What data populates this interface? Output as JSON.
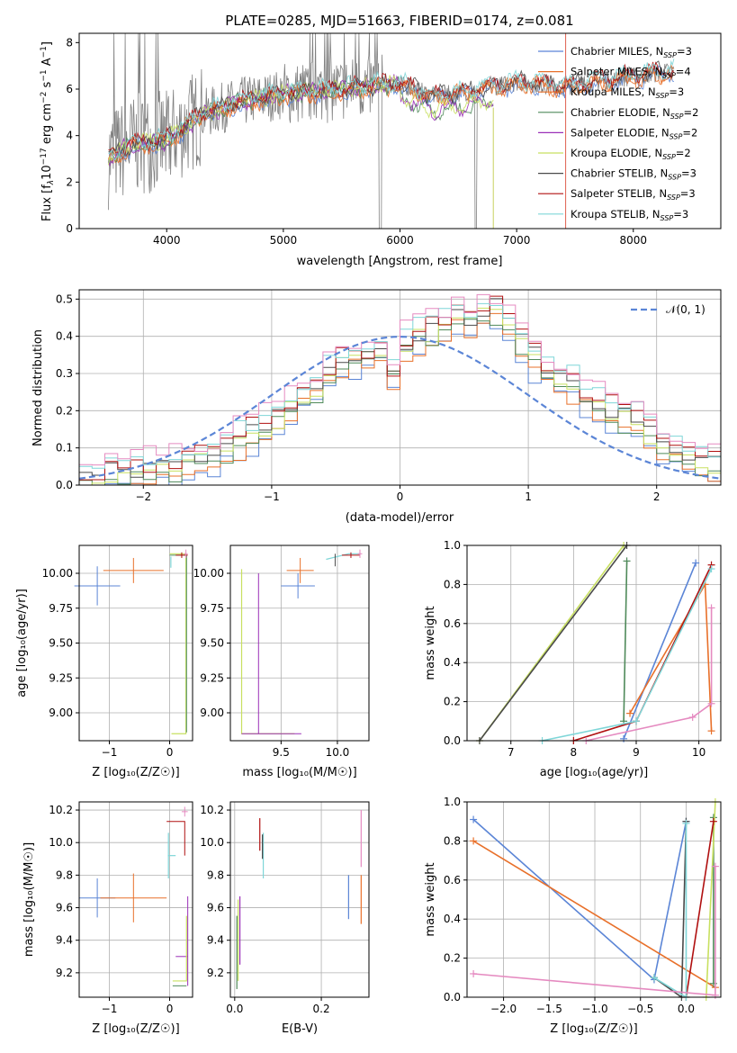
{
  "title": "PLATE=0285, MJD=51663, FIBERID=0174, z=0.081",
  "colors": {
    "Chabrier MILES": "#5b85d6",
    "Salpeter MILES": "#e8702a",
    "Kroupa MILES": "#e8702a",
    "Chabrier ELODIE": "#4f8a5a",
    "Salpeter ELODIE": "#9b30b8",
    "Kroupa ELODIE": "#c8e060",
    "Chabrier STELIB": "#4a4a4a",
    "Salpeter STELIB": "#b01010",
    "Kroupa STELIB": "#7fd6d8",
    "data": "#808080",
    "pink": "#e58ac0",
    "normal": "#5b85d6"
  },
  "chart_data": [
    {
      "id": "spectrum",
      "type": "line",
      "title": "PLATE=0285, MJD=51663, FIBERID=0174, z=0.081",
      "xlabel": "wavelength [Angstrom, rest frame]",
      "ylabel_parts": [
        "Flux [f",
        "λ",
        "10",
        "−17",
        " erg cm",
        "−2",
        " s",
        "−1",
        " A",
        "−1",
        "]"
      ],
      "xlim": [
        3250,
        8750
      ],
      "ylim": [
        0,
        8.4
      ],
      "xticks": [
        "4000",
        "5000",
        "6000",
        "7000",
        "8000"
      ],
      "yticks": [
        "0",
        "2",
        "4",
        "6",
        "8"
      ],
      "legend": [
        {
          "name": "Chabrier MILES",
          "nssp": "3"
        },
        {
          "name": "Salpeter MILES",
          "nssp": "4"
        },
        {
          "name": "Kroupa MILES",
          "nssp": "3"
        },
        {
          "name": "Chabrier ELODIE",
          "nssp": "2"
        },
        {
          "name": "Salpeter ELODIE",
          "nssp": "2"
        },
        {
          "name": "Kroupa ELODIE",
          "nssp": "2"
        },
        {
          "name": "Chabrier STELIB",
          "nssp": "3"
        },
        {
          "name": "Salpeter STELIB",
          "nssp": "3"
        },
        {
          "name": "Kroupa STELIB",
          "nssp": "3"
        }
      ],
      "model_trend": {
        "x": [
          3500,
          3700,
          4000,
          4300,
          4600,
          5000,
          5300,
          5700,
          6000,
          6300,
          6600,
          7000,
          7400,
          7800,
          8100,
          8350
        ],
        "y": [
          3.0,
          3.6,
          3.8,
          4.9,
          5.4,
          5.8,
          5.9,
          6.1,
          6.2,
          5.7,
          5.9,
          6.3,
          6.1,
          6.4,
          6.6,
          6.8
        ]
      },
      "elodie_cutoff_x": 6800
    },
    {
      "id": "residuals",
      "type": "histogram",
      "xlabel": "(data-model)/error",
      "ylabel": "Normed distribution",
      "xlim": [
        -2.5,
        2.5
      ],
      "ylim": [
        0,
        0.525
      ],
      "xticks": [
        "−2",
        "−1",
        "0",
        "1",
        "2"
      ],
      "yticks": [
        "0.0",
        "0.1",
        "0.2",
        "0.3",
        "0.4",
        "0.5"
      ],
      "legend": "𝒩(0, 1)",
      "bin_centers": [
        -2.45,
        -2.35,
        -2.25,
        -2.15,
        -2.05,
        -1.95,
        -1.85,
        -1.75,
        -1.65,
        -1.55,
        -1.45,
        -1.35,
        -1.25,
        -1.15,
        -1.05,
        -0.95,
        -0.85,
        -0.75,
        -0.65,
        -0.55,
        -0.45,
        -0.35,
        -0.25,
        -0.15,
        -0.05,
        0.05,
        0.15,
        0.25,
        0.35,
        0.45,
        0.55,
        0.65,
        0.75,
        0.85,
        0.95,
        1.05,
        1.15,
        1.25,
        1.35,
        1.45,
        1.55,
        1.65,
        1.75,
        1.85,
        1.95,
        2.05,
        2.15,
        2.25,
        2.35,
        2.45
      ],
      "density": [
        0.02,
        0.02,
        0.03,
        0.03,
        0.04,
        0.04,
        0.05,
        0.05,
        0.06,
        0.07,
        0.08,
        0.1,
        0.12,
        0.14,
        0.16,
        0.18,
        0.21,
        0.24,
        0.26,
        0.3,
        0.33,
        0.35,
        0.34,
        0.36,
        0.3,
        0.38,
        0.4,
        0.41,
        0.43,
        0.45,
        0.44,
        0.46,
        0.47,
        0.42,
        0.38,
        0.34,
        0.31,
        0.28,
        0.27,
        0.24,
        0.22,
        0.2,
        0.18,
        0.17,
        0.14,
        0.12,
        0.1,
        0.08,
        0.06,
        0.05
      ]
    },
    {
      "id": "age_vs_z",
      "type": "scatter",
      "xlabel": "Z [log₁₀(Z/Z☉)]",
      "ylabel": "age  [log₁₀(age/yr)]",
      "xlim": [
        -1.5,
        0.38
      ],
      "ylim": [
        8.8,
        10.2
      ],
      "xticks": [
        {
          "v": -1,
          "t": "−1"
        },
        {
          "v": 0,
          "t": "0"
        }
      ],
      "yticks": [
        {
          "v": 9.0,
          "t": "9.00"
        },
        {
          "v": 9.25,
          "t": "9.25"
        },
        {
          "v": 9.5,
          "t": "9.50"
        },
        {
          "v": 9.75,
          "t": "9.75"
        },
        {
          "v": 10.0,
          "t": "10.00"
        }
      ]
    },
    {
      "id": "age_vs_mass",
      "type": "scatter",
      "xlabel": "mass [log₁₀(M/M☉)]",
      "ylabel": "",
      "xlim": [
        9.05,
        10.28
      ],
      "ylim": [
        8.8,
        10.2
      ],
      "xticks": [
        {
          "v": 9.5,
          "t": "9.5"
        },
        {
          "v": 10.0,
          "t": "10.0"
        }
      ],
      "yticks": [
        {
          "v": 9.0,
          "t": "9.00"
        },
        {
          "v": 9.25,
          "t": "9.25"
        },
        {
          "v": 9.5,
          "t": "9.50"
        },
        {
          "v": 9.75,
          "t": "9.75"
        },
        {
          "v": 10.0,
          "t": "10.00"
        }
      ]
    },
    {
      "id": "weight_vs_age",
      "type": "line",
      "xlabel": "age  [log₁₀(age/yr)]",
      "ylabel": "mass weight",
      "xlim": [
        6.3,
        10.35
      ],
      "ylim": [
        0,
        1
      ],
      "xticks": [
        {
          "v": 7,
          "t": "7"
        },
        {
          "v": 8,
          "t": "8"
        },
        {
          "v": 9,
          "t": "9"
        },
        {
          "v": 10,
          "t": "10"
        }
      ],
      "yticks": [
        {
          "v": 0,
          "t": "0.0"
        },
        {
          "v": 0.2,
          "t": "0.2"
        },
        {
          "v": 0.4,
          "t": "0.4"
        },
        {
          "v": 0.6,
          "t": "0.6"
        },
        {
          "v": 0.8,
          "t": "0.8"
        },
        {
          "v": 1.0,
          "t": "1.0"
        }
      ],
      "series": [
        {
          "key": "Chabrier MILES",
          "x": [
            8.8,
            9.95
          ],
          "y": [
            0.01,
            0.91
          ]
        },
        {
          "key": "Salpeter MILES",
          "x": [
            8.9,
            10.1,
            10.2
          ],
          "y": [
            0.14,
            0.8,
            0.05
          ]
        },
        {
          "key": "Chabrier ELODIE",
          "x": [
            8.8,
            8.85
          ],
          "y": [
            0.1,
            0.92
          ]
        },
        {
          "key": "Kroupa ELODIE",
          "x": [
            6.5,
            8.8
          ],
          "y": [
            0.0,
            1.0
          ]
        },
        {
          "key": "Chabrier STELIB",
          "x": [
            6.5,
            8.85
          ],
          "y": [
            0.0,
            1.0
          ]
        },
        {
          "key": "Salpeter STELIB",
          "x": [
            8.0,
            9.0,
            10.2
          ],
          "y": [
            0.0,
            0.1,
            0.9
          ]
        },
        {
          "key": "Kroupa STELIB",
          "x": [
            7.5,
            9.0,
            10.2
          ],
          "y": [
            0.0,
            0.1,
            0.88
          ]
        },
        {
          "key": "pink",
          "x": [
            8.2,
            9.9,
            10.2,
            10.2
          ],
          "y": [
            0.0,
            0.12,
            0.19,
            0.68
          ]
        }
      ]
    },
    {
      "id": "mass_vs_z",
      "type": "scatter",
      "xlabel": "Z [log₁₀(Z/Z☉)]",
      "ylabel": "mass [log₁₀(M/M☉)]",
      "xlim": [
        -1.5,
        0.38
      ],
      "ylim": [
        9.05,
        10.25
      ],
      "xticks": [
        {
          "v": -1,
          "t": "−1"
        },
        {
          "v": 0,
          "t": "0"
        }
      ],
      "yticks": [
        {
          "v": 9.2,
          "t": "9.2"
        },
        {
          "v": 9.4,
          "t": "9.4"
        },
        {
          "v": 9.6,
          "t": "9.6"
        },
        {
          "v": 9.8,
          "t": "9.8"
        },
        {
          "v": 10.0,
          "t": "10.0"
        },
        {
          "v": 10.2,
          "t": "10.2"
        }
      ]
    },
    {
      "id": "mass_vs_ebv",
      "type": "scatter",
      "xlabel": "E(B-V)",
      "ylabel": "",
      "xlim": [
        -0.01,
        0.31
      ],
      "ylim": [
        9.05,
        10.25
      ],
      "xticks": [
        {
          "v": 0.0,
          "t": "0.0"
        },
        {
          "v": 0.2,
          "t": "0.2"
        }
      ],
      "yticks": [
        {
          "v": 9.2,
          "t": "9.2"
        },
        {
          "v": 9.4,
          "t": "9.4"
        },
        {
          "v": 9.6,
          "t": "9.6"
        },
        {
          "v": 9.8,
          "t": "9.8"
        },
        {
          "v": 10.0,
          "t": "10.0"
        },
        {
          "v": 10.2,
          "t": "10.2"
        }
      ]
    },
    {
      "id": "weight_vs_z",
      "type": "line",
      "xlabel": "Z [log₁₀(Z/Z☉)]",
      "ylabel": "mass weight",
      "xlim": [
        -2.4,
        0.38
      ],
      "ylim": [
        0,
        1
      ],
      "xticks": [
        {
          "v": -2.0,
          "t": "−2.0"
        },
        {
          "v": -1.5,
          "t": "−1.5"
        },
        {
          "v": -1.0,
          "t": "−1.0"
        },
        {
          "v": -0.5,
          "t": "−0.5"
        },
        {
          "v": 0.0,
          "t": "0.0"
        }
      ],
      "yticks": [
        {
          "v": 0,
          "t": "0.0"
        },
        {
          "v": 0.2,
          "t": "0.2"
        },
        {
          "v": 0.4,
          "t": "0.4"
        },
        {
          "v": 0.6,
          "t": "0.6"
        },
        {
          "v": 0.8,
          "t": "0.8"
        },
        {
          "v": 1.0,
          "t": "1.0"
        }
      ],
      "series": [
        {
          "key": "Chabrier MILES",
          "x": [
            -2.33,
            -0.35,
            0.0
          ],
          "y": [
            0.91,
            0.09,
            0.9
          ]
        },
        {
          "key": "Salpeter MILES",
          "x": [
            -2.33,
            0.32
          ],
          "y": [
            0.8,
            0.05
          ]
        },
        {
          "key": "Chabrier ELODIE",
          "x": [
            0.3,
            0.3
          ],
          "y": [
            0.07,
            0.92
          ]
        },
        {
          "key": "Kroupa ELODIE",
          "x": [
            0.22,
            0.32
          ],
          "y": [
            0.0,
            1.0
          ]
        },
        {
          "key": "Chabrier STELIB",
          "x": [
            -0.35,
            -0.05,
            0.0
          ],
          "y": [
            0.1,
            0.0,
            0.9
          ]
        },
        {
          "key": "Salpeter STELIB",
          "x": [
            0.0,
            0.3
          ],
          "y": [
            0.0,
            0.9
          ]
        },
        {
          "key": "Kroupa STELIB",
          "x": [
            -0.35,
            0.0,
            0.0
          ],
          "y": [
            0.1,
            0.0,
            0.89
          ]
        },
        {
          "key": "pink",
          "x": [
            -2.33,
            0.32,
            0.32
          ],
          "y": [
            0.12,
            0.01,
            0.67
          ]
        }
      ]
    }
  ]
}
